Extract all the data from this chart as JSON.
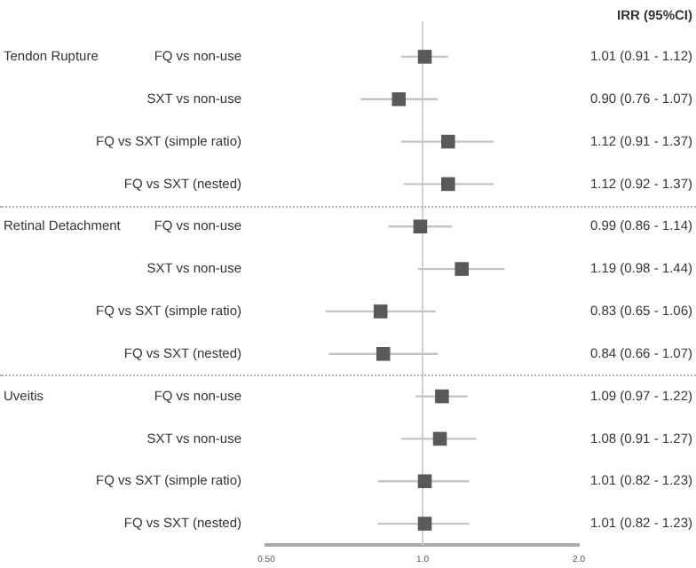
{
  "chart_data": {
    "type": "scatter",
    "orientation": "horizontal",
    "categories": [
      "FQ vs non-use",
      "SXT vs non-use",
      "FQ vs SXT (simple ratio)",
      "FQ vs SXT (nested)",
      "FQ vs non-use",
      "SXT vs non-use",
      "FQ vs SXT (simple ratio)",
      "FQ vs SXT (nested)",
      "FQ vs non-use",
      "SXT vs non-use",
      "FQ vs SXT (simple ratio)",
      "FQ vs SXT (nested)"
    ],
    "values": [
      1.01,
      0.9,
      1.12,
      1.12,
      0.99,
      1.19,
      0.83,
      0.84,
      1.09,
      1.08,
      1.01,
      1.01
    ],
    "errors": [
      [
        0.91,
        1.12
      ],
      [
        0.76,
        1.07
      ],
      [
        0.91,
        1.37
      ],
      [
        0.92,
        1.37
      ],
      [
        0.86,
        1.14
      ],
      [
        0.98,
        1.44
      ],
      [
        0.65,
        1.06
      ],
      [
        0.66,
        1.07
      ],
      [
        0.97,
        1.22
      ],
      [
        0.91,
        1.27
      ],
      [
        0.82,
        1.23
      ],
      [
        0.82,
        1.23
      ]
    ],
    "value_labels": [
      "1.01 (0.91 - 1.12)",
      "0.90 (0.76 - 1.07)",
      "1.12 (0.91 - 1.37)",
      "1.12 (0.92 - 1.37)",
      "0.99 (0.86 - 1.14)",
      "1.19 (0.98 - 1.44)",
      "0.83 (0.65 - 1.06)",
      "0.84 (0.66 - 1.07)",
      "1.09 (0.97 - 1.22)",
      "1.08 (0.91 - 1.27)",
      "1.01 (0.82 - 1.23)",
      "1.01 (0.82 - 1.23)"
    ],
    "color": "#595959",
    "marker": "square",
    "log": "x",
    "xlim": [
      0.5,
      2
    ],
    "xticks": [
      {
        "value": 0.5,
        "label": "0.50"
      },
      {
        "value": 1,
        "label": "1.0"
      },
      {
        "value": 2,
        "label": "2.0"
      }
    ],
    "ref_lines": [
      {
        "axis": "x",
        "value": 1,
        "color": "#d0d0d0"
      }
    ],
    "grid": false,
    "legend": false,
    "annotations": [
      "IRR (95%CI)",
      "Tendon Rupture",
      "Retinal Detachment",
      "Uveitis"
    ]
  }
}
